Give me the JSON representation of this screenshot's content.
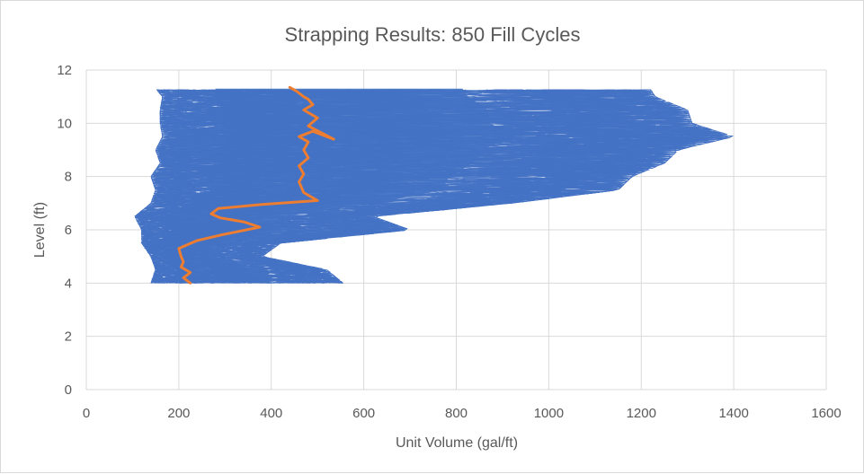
{
  "chart_data": {
    "type": "line",
    "title": "Strapping Results: 850 Fill Cycles",
    "xlabel": "Unit Volume (gal/ft)",
    "ylabel": "Level (ft)",
    "xlim": [
      0,
      1600
    ],
    "ylim": [
      0,
      12
    ],
    "x_ticks": [
      "0",
      "200",
      "400",
      "600",
      "800",
      "1000",
      "1200",
      "1400",
      "1600"
    ],
    "y_ticks": [
      "0",
      "2",
      "4",
      "6",
      "8",
      "10",
      "12"
    ],
    "grid": true,
    "legend": "none",
    "colors": {
      "cycles": "#4472c4",
      "average": "#ed7d31",
      "grid": "#d9d9d9",
      "text": "#595959"
    },
    "series": [
      {
        "id": "fill-cycles",
        "count": 850,
        "envelope": {
          "y": [
            4.0,
            4.5,
            5.0,
            5.5,
            6.0,
            6.5,
            7.0,
            7.5,
            8.0,
            8.5,
            9.0,
            9.5,
            10.0,
            10.5,
            11.0,
            11.3
          ],
          "x_min": [
            140,
            150,
            140,
            120,
            120,
            105,
            140,
            150,
            140,
            160,
            150,
            165,
            160,
            160,
            165,
            150
          ],
          "x_max": [
            555,
            520,
            380,
            420,
            700,
            620,
            920,
            1150,
            1180,
            1250,
            1280,
            1400,
            1310,
            1300,
            1230,
            1220
          ]
        }
      },
      {
        "id": "average",
        "x": [
          225,
          210,
          225,
          205,
          210,
          205,
          200,
          240,
          290,
          375,
          340,
          290,
          270,
          285,
          380,
          500,
          470,
          460,
          470,
          460,
          480,
          470,
          480,
          460,
          490,
          535,
          480,
          500,
          470,
          490,
          480,
          470,
          455,
          440
        ],
        "y": [
          4.0,
          4.2,
          4.4,
          4.6,
          4.8,
          5.0,
          5.3,
          5.6,
          5.8,
          6.1,
          6.3,
          6.45,
          6.6,
          6.8,
          6.95,
          7.1,
          7.4,
          7.8,
          8.1,
          8.4,
          8.7,
          9.0,
          9.3,
          9.5,
          9.7,
          9.4,
          9.9,
          10.2,
          10.5,
          10.7,
          10.9,
          11.0,
          11.2,
          11.35
        ]
      }
    ]
  }
}
